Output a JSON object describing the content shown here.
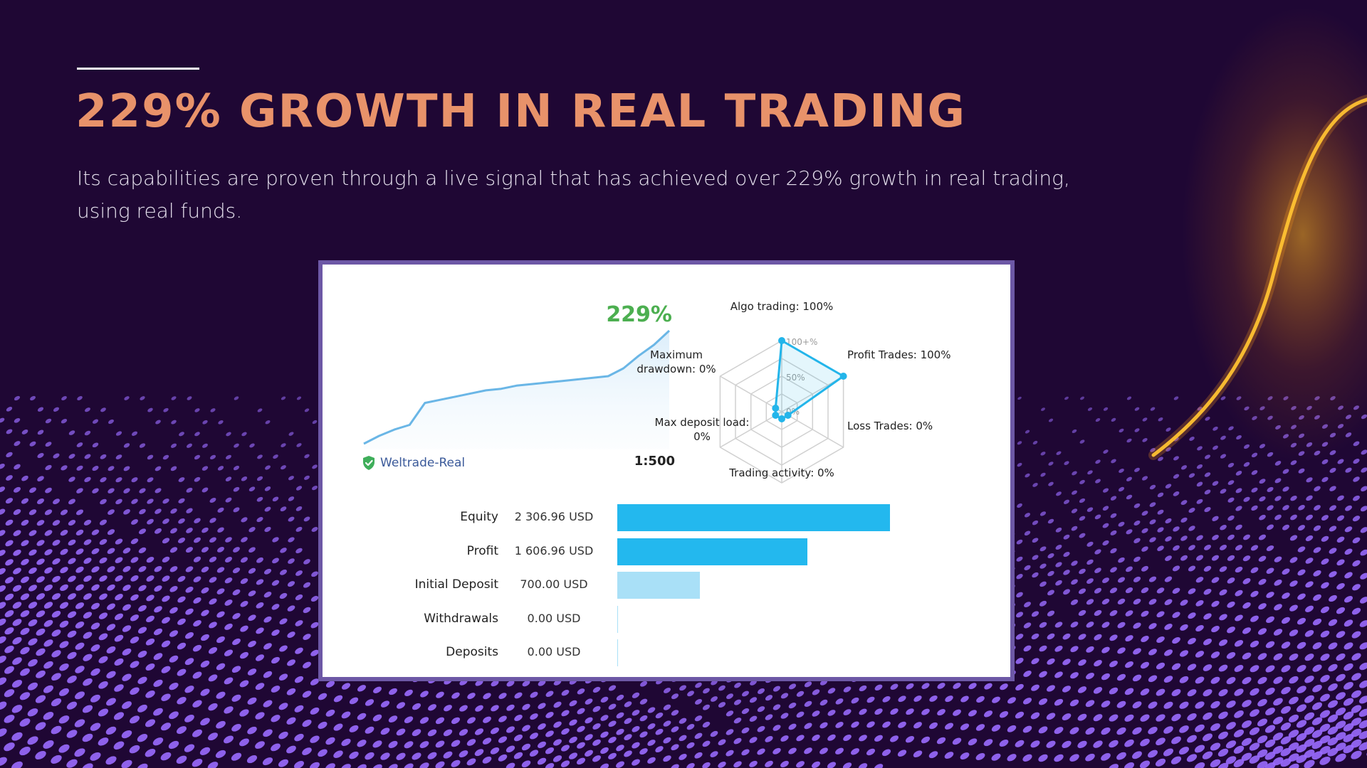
{
  "title": "229% GROWTH IN REAL TRADING",
  "subtitle": "Its capabilities are proven through a live signal that has achieved over 229% growth in real trading, using real funds.",
  "signal": {
    "growth_label": "229%",
    "broker": "Weltrade-Real",
    "leverage": "1:500",
    "growth_curve": [
      0,
      5,
      9,
      12,
      26,
      28,
      30,
      32,
      34,
      35,
      37,
      38,
      39,
      40,
      41,
      42,
      43,
      48,
      56,
      63,
      72
    ],
    "colors": {
      "growth_text": "#4caf50",
      "line": "#6ab6e6",
      "radar": "#23b5ea",
      "bar_primary": "#23b8ee",
      "bar_secondary": "#a9e0f7",
      "title": "#e8926a",
      "background": "#1f0734",
      "frame": "#6d58a6"
    }
  },
  "radar": {
    "axes": [
      {
        "label": "Algo trading: 100%",
        "value": 100
      },
      {
        "label": "Profit Trades: 100%",
        "value": 100
      },
      {
        "label": "Loss Trades: 0%",
        "value": 0
      },
      {
        "label": "Trading activity: 0%",
        "value": 0
      },
      {
        "label": "Max deposit load: 0%",
        "value": 0
      },
      {
        "label": "Maximum drawdown: 0%",
        "value": 0
      }
    ],
    "scale_labels": [
      "100+%",
      "50%",
      "0%"
    ]
  },
  "stats": [
    {
      "label": "Equity",
      "value": "2 306.96 USD",
      "amount": 2306.96,
      "color": "#23b8ee"
    },
    {
      "label": "Profit",
      "value": "1 606.96 USD",
      "amount": 1606.96,
      "color": "#23b8ee"
    },
    {
      "label": "Initial Deposit",
      "value": "700.00 USD",
      "amount": 700.0,
      "color": "#a9e0f7"
    },
    {
      "label": "Withdrawals",
      "value": "0.00 USD",
      "amount": 0,
      "color": "#a9e0f7"
    },
    {
      "label": "Deposits",
      "value": "0.00 USD",
      "amount": 0,
      "color": "#a9e0f7"
    }
  ]
}
